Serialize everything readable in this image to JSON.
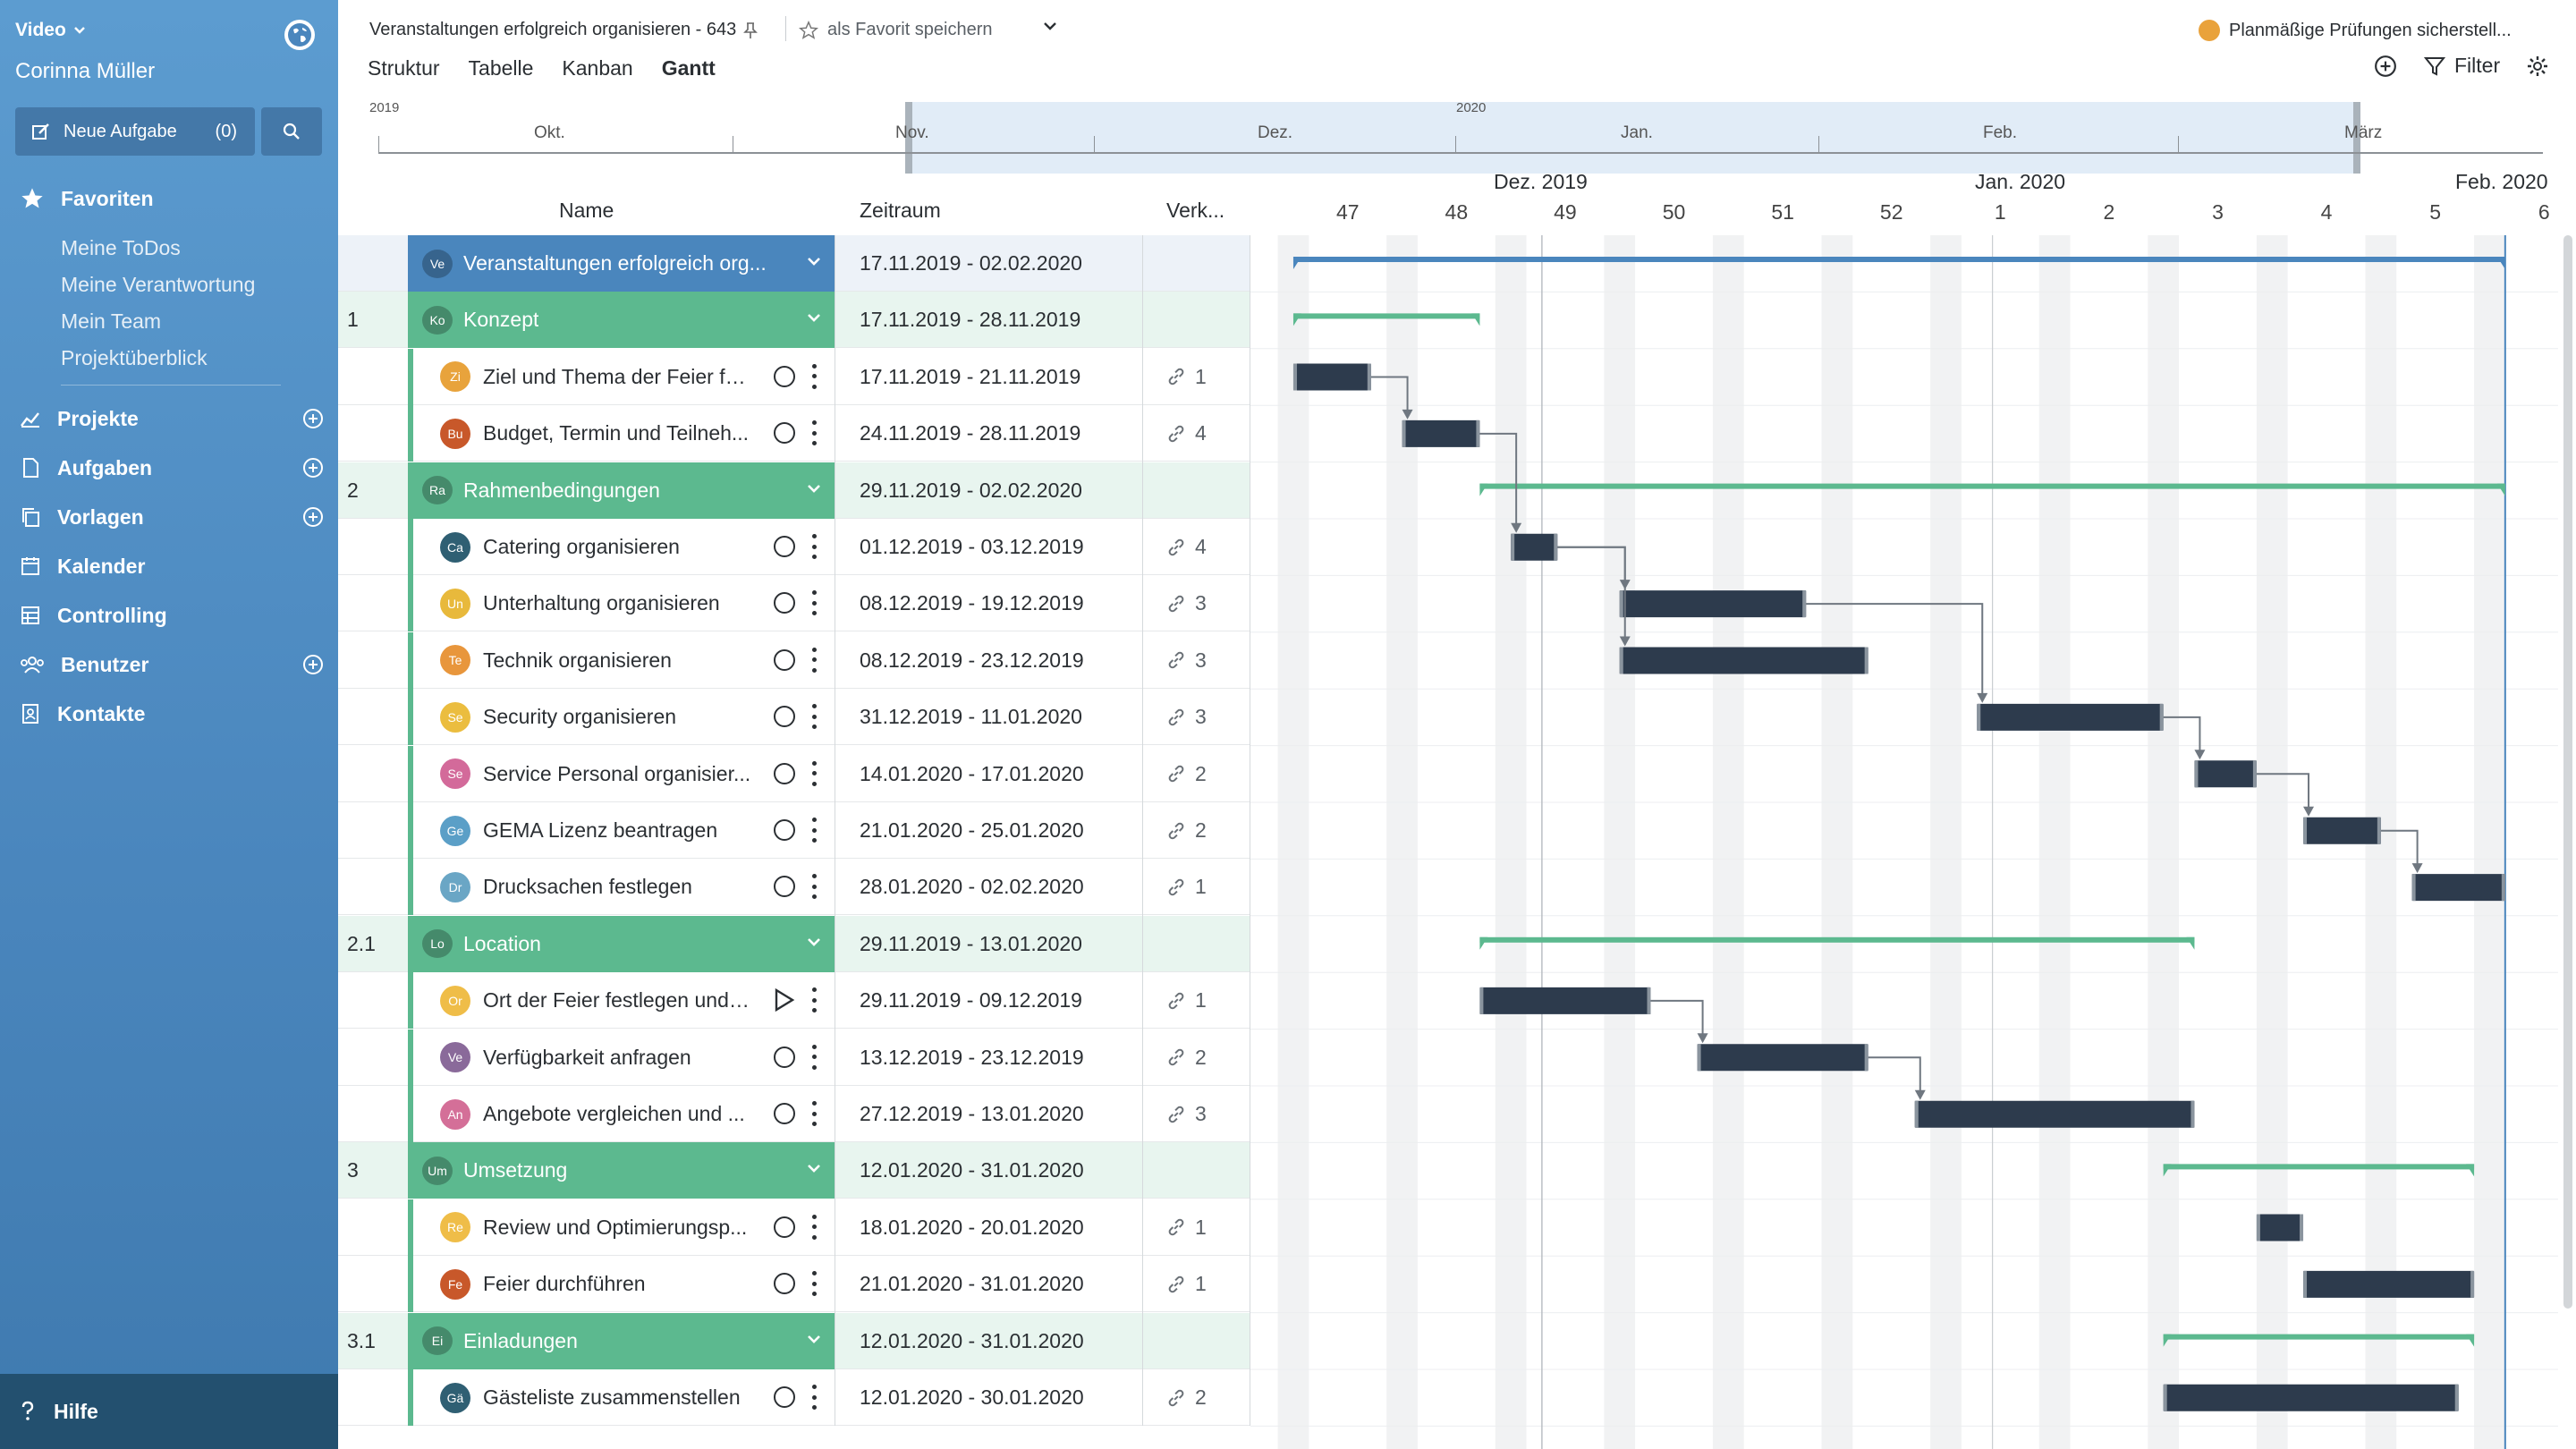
{
  "sidebar": {
    "workspace": "Video",
    "user": "Corinna Müller",
    "new_task_label": "Neue Aufgabe",
    "new_task_count": "(0)",
    "favorites_label": "Favoriten",
    "favorites": [
      "Meine ToDos",
      "Meine Verantwortung",
      "Mein Team",
      "Projektüberblick"
    ],
    "nav": [
      {
        "label": "Projekte",
        "has_add": true
      },
      {
        "label": "Aufgaben",
        "has_add": true
      },
      {
        "label": "Vorlagen",
        "has_add": true
      },
      {
        "label": "Kalender",
        "has_add": false
      },
      {
        "label": "Controlling",
        "has_add": false
      },
      {
        "label": "Benutzer",
        "has_add": true
      },
      {
        "label": "Kontakte",
        "has_add": false
      }
    ],
    "help_label": "Hilfe"
  },
  "header": {
    "title": "Veranstaltungen erfolgreich organisieren - 643",
    "favorite_label": "als Favorit speichern",
    "tabs": [
      "Struktur",
      "Tabelle",
      "Kanban",
      "Gantt"
    ],
    "active_tab": "Gantt",
    "status_text": "Planmäßige Prüfungen sicherstell...",
    "status_color": "#e9a23b",
    "filter_label": "Filter"
  },
  "overview": {
    "year_left": "2019",
    "year_mid": "2020",
    "months": [
      "Okt.",
      "Nov.",
      "Dez.",
      "Jan.",
      "Feb.",
      "März"
    ]
  },
  "columns": {
    "name": "Name",
    "period": "Zeitraum",
    "links": "Verk..."
  },
  "gantt_header": {
    "months": [
      "Dez. 2019",
      "Jan. 2020",
      "Feb. 2020"
    ],
    "weeks": [
      "47",
      "48",
      "49",
      "50",
      "51",
      "52",
      "1",
      "2",
      "3",
      "4",
      "5",
      "6"
    ]
  },
  "rows": [
    {
      "type": "project",
      "num": "",
      "abbr": "Ve",
      "name": "Veranstaltungen erfolgreich org...",
      "period": "17.11.2019 - 02.02.2020",
      "links": ""
    },
    {
      "type": "group",
      "num": "1",
      "abbr": "Ko",
      "name": "Konzept",
      "period": "17.11.2019 - 28.11.2019",
      "links": ""
    },
    {
      "type": "task",
      "num": "",
      "abbr": "Zi",
      "color": "#e8a33c",
      "name": "Ziel und Thema der Feier fe...",
      "period": "17.11.2019 - 21.11.2019",
      "links": "1",
      "status": "circle"
    },
    {
      "type": "task",
      "num": "",
      "abbr": "Bu",
      "color": "#c8582a",
      "name": "Budget, Termin und Teilneh...",
      "period": "24.11.2019 - 28.11.2019",
      "links": "4",
      "status": "circle"
    },
    {
      "type": "group",
      "num": "2",
      "abbr": "Ra",
      "name": "Rahmenbedingungen",
      "period": "29.11.2019 - 02.02.2020",
      "links": ""
    },
    {
      "type": "task",
      "num": "",
      "abbr": "Ca",
      "color": "#2f5f73",
      "name": "Catering organisieren",
      "period": "01.12.2019 - 03.12.2019",
      "links": "4",
      "status": "circle"
    },
    {
      "type": "task",
      "num": "",
      "abbr": "Un",
      "color": "#e8b93c",
      "name": "Unterhaltung organisieren",
      "period": "08.12.2019 - 19.12.2019",
      "links": "3",
      "status": "circle"
    },
    {
      "type": "task",
      "num": "",
      "abbr": "Te",
      "color": "#e8963c",
      "name": "Technik organisieren",
      "period": "08.12.2019 - 23.12.2019",
      "links": "3",
      "status": "circle"
    },
    {
      "type": "task",
      "num": "",
      "abbr": "Se",
      "color": "#ebbd3f",
      "name": "Security organisieren",
      "period": "31.12.2019 - 11.01.2020",
      "links": "3",
      "status": "circle"
    },
    {
      "type": "task",
      "num": "",
      "abbr": "Se",
      "color": "#d36a9a",
      "name": "Service Personal organisier...",
      "period": "14.01.2020 - 17.01.2020",
      "links": "2",
      "status": "circle"
    },
    {
      "type": "task",
      "num": "",
      "abbr": "Ge",
      "color": "#5b9fc7",
      "name": "GEMA Lizenz beantragen",
      "period": "21.01.2020 - 25.01.2020",
      "links": "2",
      "status": "circle"
    },
    {
      "type": "task",
      "num": "",
      "abbr": "Dr",
      "color": "#6aa6c5",
      "name": "Drucksachen festlegen",
      "period": "28.01.2020 - 02.02.2020",
      "links": "1",
      "status": "circle"
    },
    {
      "type": "group",
      "num": "2.1",
      "abbr": "Lo",
      "name": "Location",
      "period": "29.11.2019 - 13.01.2020",
      "links": ""
    },
    {
      "type": "task",
      "num": "",
      "abbr": "Or",
      "color": "#efbd48",
      "name": "Ort der Feier festlegen und ...",
      "period": "29.11.2019 - 09.12.2019",
      "links": "1",
      "status": "play"
    },
    {
      "type": "task",
      "num": "",
      "abbr": "Ve",
      "color": "#8a6a9a",
      "name": "Verfügbarkeit anfragen",
      "period": "13.12.2019 - 23.12.2019",
      "links": "2",
      "status": "circle"
    },
    {
      "type": "task",
      "num": "",
      "abbr": "An",
      "color": "#d46f98",
      "name": "Angebote vergleichen und ...",
      "period": "27.12.2019 - 13.01.2020",
      "links": "3",
      "status": "circle"
    },
    {
      "type": "group",
      "num": "3",
      "abbr": "Um",
      "name": "Umsetzung",
      "period": "12.01.2020 - 31.01.2020",
      "links": ""
    },
    {
      "type": "task",
      "num": "",
      "abbr": "Re",
      "color": "#efbd48",
      "name": "Review und Optimierungsp...",
      "period": "18.01.2020 - 20.01.2020",
      "links": "1",
      "status": "circle"
    },
    {
      "type": "task",
      "num": "",
      "abbr": "Fe",
      "color": "#c8582a",
      "name": "Feier durchführen",
      "period": "21.01.2020 - 31.01.2020",
      "links": "1",
      "status": "circle"
    },
    {
      "type": "group",
      "num": "3.1",
      "abbr": "Ei",
      "name": "Einladungen",
      "period": "12.01.2020 - 31.01.2020",
      "links": ""
    },
    {
      "type": "task",
      "num": "",
      "abbr": "Gä",
      "color": "#2f5f73",
      "name": "Gästeliste zusammenstellen",
      "period": "12.01.2020 - 30.01.2020",
      "links": "2",
      "status": "circle"
    }
  ],
  "chart_data": {
    "type": "gantt",
    "date_axis": {
      "start": "2019-11-16",
      "end": "2020-02-07",
      "weeks": [
        "47",
        "48",
        "49",
        "50",
        "51",
        "52",
        "1",
        "2",
        "3",
        "4",
        "5",
        "6"
      ]
    },
    "today_marker": "2019-12-03",
    "milestone_marker": "2020-01-01",
    "bars": [
      {
        "row": 0,
        "kind": "summary",
        "color": "#4a86bd",
        "start": "2019-11-17",
        "end": "2020-02-02"
      },
      {
        "row": 1,
        "kind": "summary",
        "color": "#5cb98f",
        "start": "2019-11-17",
        "end": "2019-11-28"
      },
      {
        "row": 2,
        "kind": "task",
        "start": "2019-11-17",
        "end": "2019-11-21"
      },
      {
        "row": 3,
        "kind": "task",
        "start": "2019-11-24",
        "end": "2019-11-28"
      },
      {
        "row": 4,
        "kind": "summary",
        "color": "#5cb98f",
        "start": "2019-11-29",
        "end": "2020-02-02"
      },
      {
        "row": 5,
        "kind": "task",
        "start": "2019-12-01",
        "end": "2019-12-03"
      },
      {
        "row": 6,
        "kind": "task",
        "start": "2019-12-08",
        "end": "2019-12-19"
      },
      {
        "row": 7,
        "kind": "task",
        "start": "2019-12-08",
        "end": "2019-12-23"
      },
      {
        "row": 8,
        "kind": "task",
        "start": "2019-12-31",
        "end": "2020-01-11"
      },
      {
        "row": 9,
        "kind": "task",
        "start": "2020-01-14",
        "end": "2020-01-17"
      },
      {
        "row": 10,
        "kind": "task",
        "start": "2020-01-21",
        "end": "2020-01-25"
      },
      {
        "row": 11,
        "kind": "task",
        "start": "2020-01-28",
        "end": "2020-02-02"
      },
      {
        "row": 12,
        "kind": "summary",
        "color": "#5cb98f",
        "start": "2019-11-29",
        "end": "2020-01-13"
      },
      {
        "row": 13,
        "kind": "task",
        "start": "2019-11-29",
        "end": "2019-12-09"
      },
      {
        "row": 14,
        "kind": "task",
        "start": "2019-12-13",
        "end": "2019-12-23"
      },
      {
        "row": 15,
        "kind": "task",
        "start": "2019-12-27",
        "end": "2020-01-13"
      },
      {
        "row": 16,
        "kind": "summary",
        "color": "#5cb98f",
        "start": "2020-01-12",
        "end": "2020-01-31"
      },
      {
        "row": 17,
        "kind": "task",
        "start": "2020-01-18",
        "end": "2020-01-20"
      },
      {
        "row": 18,
        "kind": "task",
        "start": "2020-01-21",
        "end": "2020-01-31"
      },
      {
        "row": 19,
        "kind": "summary",
        "color": "#5cb98f",
        "start": "2020-01-12",
        "end": "2020-01-31"
      },
      {
        "row": 20,
        "kind": "task",
        "start": "2020-01-12",
        "end": "2020-01-30"
      }
    ],
    "dependencies": [
      [
        2,
        3
      ],
      [
        3,
        5
      ],
      [
        5,
        6
      ],
      [
        5,
        7
      ],
      [
        6,
        8
      ],
      [
        8,
        9
      ],
      [
        9,
        10
      ],
      [
        10,
        11
      ],
      [
        13,
        14
      ],
      [
        14,
        15
      ]
    ]
  }
}
